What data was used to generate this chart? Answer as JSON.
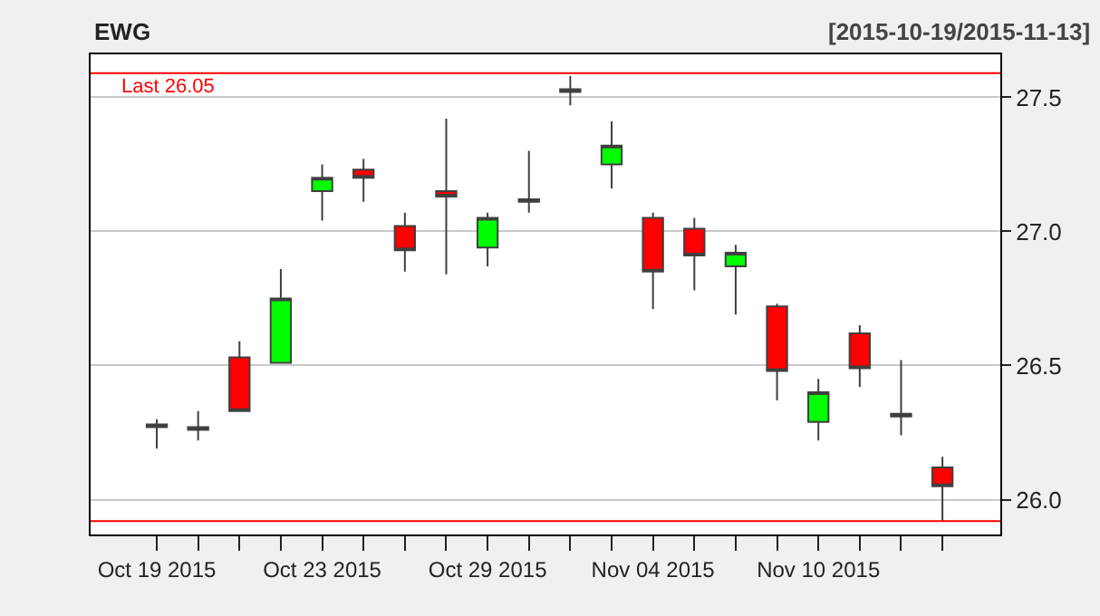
{
  "chart_data": {
    "type": "candlestick",
    "title": "EWG",
    "subtitle": "[2015-10-19/2015-11-13]",
    "categories": [
      "Oct 19 2015",
      null,
      null,
      null,
      "Oct 23 2015",
      null,
      null,
      null,
      "Oct 29 2015",
      null,
      null,
      null,
      "Nov 04 2015",
      null,
      null,
      null,
      "Nov 10 2015",
      null,
      null,
      null
    ],
    "ohlc": [
      [
        26.28,
        26.3,
        26.19,
        26.27
      ],
      [
        26.26,
        26.33,
        26.22,
        26.27
      ],
      [
        26.53,
        26.59,
        26.33,
        26.33
      ],
      [
        26.51,
        26.86,
        26.51,
        26.75
      ],
      [
        27.15,
        27.25,
        27.04,
        27.2
      ],
      [
        27.23,
        27.27,
        27.11,
        27.2
      ],
      [
        27.02,
        27.07,
        26.85,
        26.93
      ],
      [
        27.15,
        27.42,
        26.84,
        27.13
      ],
      [
        26.94,
        27.07,
        26.87,
        27.05
      ],
      [
        27.11,
        27.3,
        27.07,
        27.12
      ],
      [
        27.52,
        27.58,
        27.47,
        27.53
      ],
      [
        27.25,
        27.41,
        27.16,
        27.32
      ],
      [
        27.05,
        27.07,
        26.71,
        26.85
      ],
      [
        27.01,
        27.05,
        26.78,
        26.91
      ],
      [
        26.87,
        26.95,
        26.69,
        26.92
      ],
      [
        26.72,
        26.73,
        26.37,
        26.48
      ],
      [
        26.29,
        26.45,
        26.22,
        26.4
      ],
      [
        26.62,
        26.65,
        26.42,
        26.49
      ],
      [
        26.31,
        26.52,
        26.24,
        26.32
      ],
      [
        26.12,
        26.16,
        25.92,
        26.05
      ]
    ],
    "colors": [
      "#ff0000",
      "#404040",
      "#ff0000",
      "#00ff00",
      "#00ff00",
      "#ff0000",
      "#ff0000",
      "#ff0000",
      "#00ff00",
      "#404040",
      "#404040",
      "#00ff00",
      "#ff0000",
      "#ff0000",
      "#00ff00",
      "#ff0000",
      "#00ff00",
      "#ff0000",
      "#404040",
      "#ff0000"
    ],
    "ylim": [
      25.87,
      27.66
    ],
    "yticks": [
      {
        "value": 26,
        "label": "26.0"
      },
      26.5,
      {
        "value": 27,
        "label": "27.0"
      },
      27.5
    ],
    "grid": "y",
    "ref_lines": [
      {
        "axis": "y",
        "value": 27.59,
        "label": "Last 26.05",
        "color": "#ff0000"
      },
      {
        "axis": "y",
        "value": 25.92,
        "label": null,
        "color": "#ff0000"
      }
    ]
  }
}
